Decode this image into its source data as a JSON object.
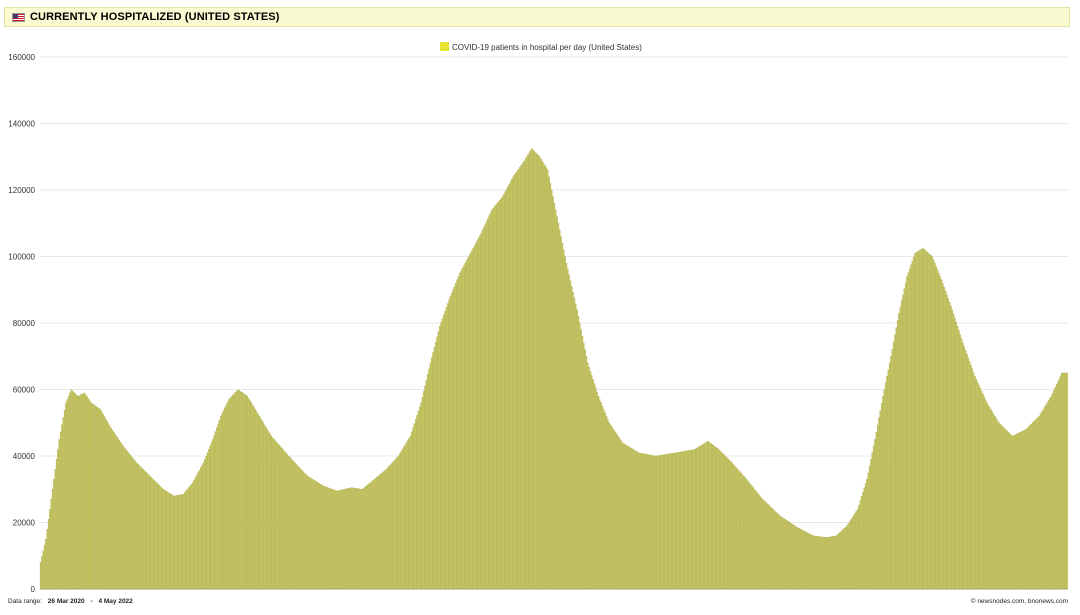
{
  "header": {
    "title": "CURRENTLY HOSPITALIZED (UNITED STATES)",
    "flag_icon": "us-flag-icon"
  },
  "footer": {
    "range_label": "Data range:",
    "range_start": "26 Mar 2020",
    "range_sep": "-",
    "range_end": "4 May 2022",
    "credit": "© newsnodes.com, bnonews.com"
  },
  "chart_data": {
    "type": "bar",
    "title": "",
    "xlabel": "",
    "ylabel": "",
    "x_range": [
      "2020-03-26",
      "2022-05-04"
    ],
    "ylim": [
      0,
      160000
    ],
    "yticks": [
      "0",
      "20000",
      "40000",
      "60000",
      "80000",
      "100000",
      "120000",
      "140000",
      "160000"
    ],
    "grid": true,
    "legend_position": "top-center",
    "bar_color": "#c8c85a",
    "bar_edge_color": "#9e9e38",
    "legend_color": "#e6e632",
    "series": [
      {
        "name": "COVID-19 patients in hospital per day (United States)",
        "points": [
          [
            "2020-03-26",
            8000
          ],
          [
            "2020-03-30",
            15000
          ],
          [
            "2020-04-04",
            30000
          ],
          [
            "2020-04-09",
            45000
          ],
          [
            "2020-04-14",
            56000
          ],
          [
            "2020-04-18",
            60000
          ],
          [
            "2020-04-23",
            58000
          ],
          [
            "2020-04-28",
            59000
          ],
          [
            "2020-05-03",
            56000
          ],
          [
            "2020-05-10",
            54000
          ],
          [
            "2020-05-17",
            49000
          ],
          [
            "2020-05-27",
            43000
          ],
          [
            "2020-06-06",
            38000
          ],
          [
            "2020-06-16",
            34000
          ],
          [
            "2020-06-26",
            30000
          ],
          [
            "2020-07-04",
            28000
          ],
          [
            "2020-07-11",
            28500
          ],
          [
            "2020-07-18",
            32000
          ],
          [
            "2020-07-26",
            38000
          ],
          [
            "2020-08-02",
            45000
          ],
          [
            "2020-08-08",
            52000
          ],
          [
            "2020-08-14",
            57000
          ],
          [
            "2020-08-21",
            60000
          ],
          [
            "2020-08-28",
            58000
          ],
          [
            "2020-09-06",
            52000
          ],
          [
            "2020-09-15",
            46000
          ],
          [
            "2020-09-28",
            40000
          ],
          [
            "2020-10-12",
            34000
          ],
          [
            "2020-10-24",
            31000
          ],
          [
            "2020-11-03",
            29500
          ],
          [
            "2020-11-14",
            30500
          ],
          [
            "2020-11-22",
            30000
          ],
          [
            "2020-12-01",
            33000
          ],
          [
            "2020-12-10",
            36000
          ],
          [
            "2020-12-19",
            40000
          ],
          [
            "2020-12-28",
            46000
          ],
          [
            "2021-01-05",
            56000
          ],
          [
            "2021-01-12",
            68000
          ],
          [
            "2021-01-19",
            79000
          ],
          [
            "2021-01-26",
            87000
          ],
          [
            "2021-02-03",
            95000
          ],
          [
            "2021-02-11",
            101000
          ],
          [
            "2021-02-19",
            107000
          ],
          [
            "2021-02-27",
            114000
          ],
          [
            "2021-03-07",
            118000
          ],
          [
            "2021-03-15",
            124000
          ],
          [
            "2021-03-22",
            128000
          ],
          [
            "2021-03-29",
            132500
          ],
          [
            "2021-04-04",
            130000
          ],
          [
            "2021-04-10",
            126000
          ],
          [
            "2021-04-17",
            112000
          ],
          [
            "2021-04-24",
            98000
          ],
          [
            "2021-05-02",
            84000
          ],
          [
            "2021-05-10",
            68000
          ],
          [
            "2021-05-18",
            58000
          ],
          [
            "2021-05-26",
            50000
          ],
          [
            "2021-06-05",
            44000
          ],
          [
            "2021-06-17",
            41000
          ],
          [
            "2021-06-30",
            40000
          ],
          [
            "2021-07-15",
            41000
          ],
          [
            "2021-07-29",
            42000
          ],
          [
            "2021-08-08",
            44500
          ],
          [
            "2021-08-16",
            42000
          ],
          [
            "2021-08-26",
            38000
          ],
          [
            "2021-09-06",
            33000
          ],
          [
            "2021-09-18",
            27000
          ],
          [
            "2021-10-01",
            22000
          ],
          [
            "2021-10-14",
            18500
          ],
          [
            "2021-10-26",
            16000
          ],
          [
            "2021-11-05",
            15500
          ],
          [
            "2021-11-12",
            16000
          ],
          [
            "2021-11-20",
            19000
          ],
          [
            "2021-11-28",
            24000
          ],
          [
            "2021-12-05",
            33000
          ],
          [
            "2021-12-11",
            45000
          ],
          [
            "2021-12-17",
            58000
          ],
          [
            "2021-12-23",
            70000
          ],
          [
            "2021-12-29",
            83000
          ],
          [
            "2022-01-04",
            94000
          ],
          [
            "2022-01-10",
            101000
          ],
          [
            "2022-01-16",
            102500
          ],
          [
            "2022-01-23",
            100000
          ],
          [
            "2022-01-30",
            93000
          ],
          [
            "2022-02-07",
            84000
          ],
          [
            "2022-02-15",
            74000
          ],
          [
            "2022-02-24",
            64000
          ],
          [
            "2022-03-05",
            56000
          ],
          [
            "2022-03-14",
            50000
          ],
          [
            "2022-03-24",
            46000
          ],
          [
            "2022-04-03",
            48000
          ],
          [
            "2022-04-13",
            52000
          ],
          [
            "2022-04-22",
            58000
          ],
          [
            "2022-04-30",
            65000
          ],
          [
            "2022-05-04",
            65000
          ]
        ]
      }
    ]
  }
}
